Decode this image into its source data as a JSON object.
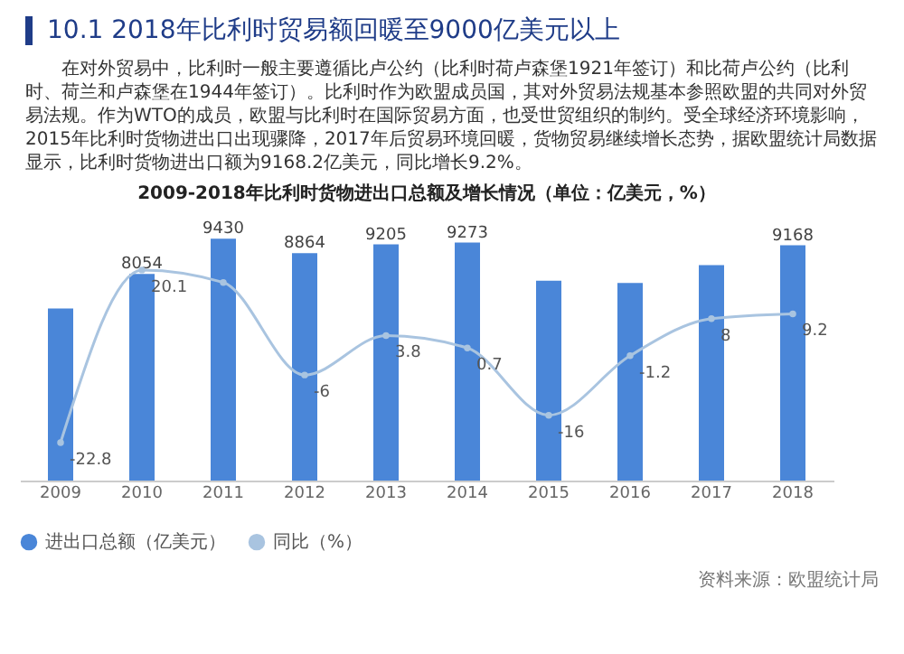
{
  "chart_data": {
    "type": "bar",
    "title": "10.1 2018年比利时贸易额回暖至9000亿美元以上",
    "subtitle": "2009-2018年比利时货物进出口总额及增长情况（单位：亿美元，%）",
    "annotations": [
      "在对外贸易中，比利时一般主要遵循比卢公约（比利时荷卢森堡1921年签订）和比荷卢公约（比利时、荷兰和卢森堡在1944年签订）。比利时作为欧盟成员国，其对外贸易法规基本参照欧盟的共同对外贸易法规。作为WTO的成员，欧盟与比利时在国际贸易方面，也受世贸组织的制约。受全球经济环境影响，2015年比利时货物进出口出现骤降，2017年后贸易环境回暖，货物贸易继续增长态势，据欧盟统计局数据显示，比利时货物进出口额为9168.2亿美元，同比增长9.2%。",
      "资料来源：欧盟统计局"
    ],
    "categories": [
      "2009",
      "2010",
      "2011",
      "2012",
      "2013",
      "2014",
      "2015",
      "2016",
      "2017",
      "2018"
    ],
    "series": [
      {
        "name": "进出口总额（亿美元）",
        "color": "#4a86d8",
        "values": [
          6706,
          8054,
          9430,
          8864,
          9205,
          9273,
          7790,
          7697,
          8394,
          9168
        ],
        "value_labels": [
          null,
          "8054",
          "9430",
          "8864",
          "9205",
          "9273",
          null,
          null,
          null,
          "9168"
        ]
      },
      {
        "name": "同比（%）",
        "type": "line",
        "axis": "y2",
        "color": "#a9c4e0",
        "values": [
          -22.8,
          20.1,
          17,
          -6,
          3.8,
          0.7,
          -16,
          -1.2,
          8,
          9.2
        ],
        "value_labels": [
          "-22.8",
          "20.1",
          null,
          "-6",
          "3.8",
          "0.7",
          "-16",
          "-1.2",
          "8",
          "9.2"
        ]
      }
    ],
    "legend": "bottom",
    "marker": "circle",
    "grid": false
  }
}
